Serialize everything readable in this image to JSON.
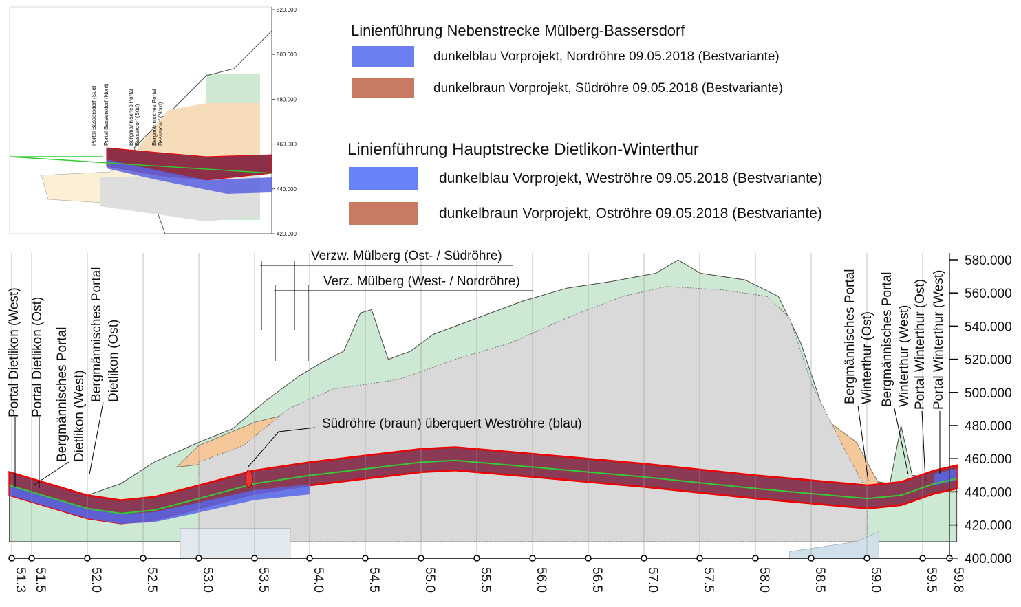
{
  "inset": {
    "y_axis": [
      "520.000",
      "500.000",
      "480.000",
      "460.000",
      "440.000",
      "420.000"
    ],
    "portals": [
      {
        "lines": [
          "Portal Bassersdorf (Süd)"
        ]
      },
      {
        "lines": [
          "Portal Bassersdorf (Nord)"
        ]
      },
      {
        "lines": [
          "Bergmännisches Portal",
          "Basserdorf (Süd)"
        ]
      },
      {
        "lines": [
          "Bergmännisches Portal",
          "Basserdorf (Nord)"
        ]
      }
    ]
  },
  "legend": {
    "groups": [
      {
        "title": "Linienführung Nebenstrecke Mülberg-Bassersdorf",
        "items": [
          "dunkelblau Vorprojekt, Nordröhre 09.05.2018 (Bestvariante)",
          "dunkelbraun Vorprojekt, Südröhre 09.05.2018 (Bestvariante)"
        ]
      },
      {
        "title": "Linienführung Hauptstrecke Dietlikon-Winterthur",
        "items": [
          "dunkelblau Vorprojekt, Weströhre 09.05.2018 (Bestvariante)",
          "dunkelbraun Vorprojekt, Oströhre 09.05.2018 (Bestvariante)"
        ]
      }
    ]
  },
  "profile": {
    "annotations": [
      "Verzw. Mülberg (Ost- / Südröhre)",
      "Verz. Mülberg (West- / Nordröhre)",
      "Südröhre (braun) überquert Weströhre (blau)"
    ],
    "portals_left": [
      {
        "lines": [
          "Portal Dietlikon (West)"
        ]
      },
      {
        "lines": [
          "Portal Dietlikon (Ost)"
        ]
      },
      {
        "lines": [
          "Bergmännisches Portal",
          "Dietlikon (West)"
        ]
      },
      {
        "lines": [
          "Bergmännisches Portal",
          "Dietlikon (Ost)"
        ]
      }
    ],
    "portals_right": [
      {
        "lines": [
          "Bergmännisches Portal",
          "Winterthur (Ost)"
        ]
      },
      {
        "lines": [
          "Bergmännisches Portal",
          "Winterthur (West)"
        ]
      },
      {
        "lines": [
          "Portal Winterthur (Ost)"
        ]
      },
      {
        "lines": [
          "Portal Winterthur (West)"
        ]
      }
    ],
    "y_axis": [
      "580.000",
      "560.000",
      "540.000",
      "520.000",
      "500.000",
      "480.000",
      "460.000",
      "440.000",
      "420.000",
      "400.000"
    ],
    "x_axis": [
      "51.3",
      "51.5",
      "52.0",
      "52.5",
      "53.0",
      "53.5",
      "54.0",
      "54.5",
      "55.0",
      "55.5",
      "56.0",
      "56.5",
      "57.0",
      "57.5",
      "58.0",
      "58.5",
      "59.0",
      "59.5",
      "59.8"
    ]
  }
}
